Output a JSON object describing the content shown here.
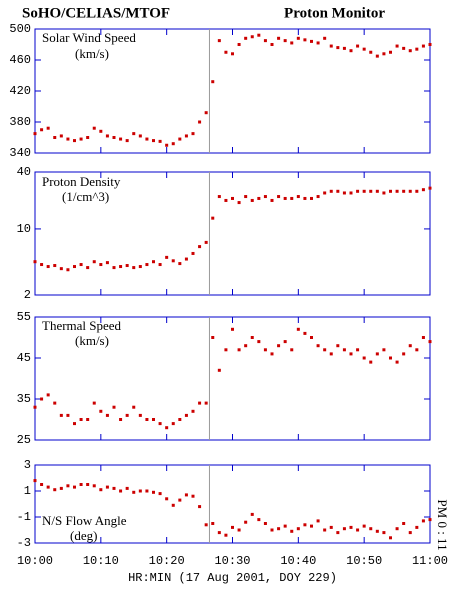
{
  "title": "SoHO/CELIAS/MTOF",
  "subtitle": "Proton Monitor",
  "side_note": "PM 0 : 11",
  "chart_data": [
    {
      "type": "scatter",
      "ylabel": "Solar Wind Speed",
      "unit": "(km/s)",
      "color": "#cc0000",
      "frame_color": "#0000cc",
      "vline_x": 626.5,
      "xlim": [
        600,
        660
      ],
      "xticks": [
        600,
        610,
        620,
        630,
        640,
        650,
        660
      ],
      "ylim": [
        340,
        500
      ],
      "yticks": [
        340,
        380,
        420,
        460,
        500
      ],
      "x": [
        600,
        601,
        602,
        603,
        604,
        605,
        606,
        607,
        608,
        609,
        610,
        611,
        612,
        613,
        614,
        615,
        616,
        617,
        618,
        619,
        620,
        621,
        622,
        623,
        624,
        625,
        626,
        627,
        628,
        629,
        630,
        631,
        632,
        633,
        634,
        635,
        636,
        637,
        638,
        639,
        640,
        641,
        642,
        643,
        644,
        645,
        646,
        647,
        648,
        649,
        650,
        651,
        652,
        653,
        654,
        655,
        656,
        657,
        658,
        659,
        660
      ],
      "values": [
        365,
        370,
        372,
        360,
        362,
        358,
        356,
        358,
        360,
        372,
        368,
        362,
        360,
        358,
        356,
        365,
        362,
        358,
        356,
        355,
        350,
        352,
        358,
        362,
        365,
        380,
        392,
        432,
        485,
        470,
        468,
        480,
        488,
        490,
        492,
        485,
        480,
        488,
        485,
        482,
        488,
        486,
        484,
        482,
        488,
        478,
        476,
        475,
        472,
        478,
        474,
        470,
        465,
        468,
        470,
        478,
        475,
        472,
        474,
        478,
        480
      ]
    },
    {
      "type": "scatter",
      "ylabel": "Proton Density",
      "unit": "(1/cm^3)",
      "color": "#cc0000",
      "frame_color": "#0000cc",
      "vline_x": 626.5,
      "log": true,
      "xlim": [
        600,
        660
      ],
      "xticks": [
        600,
        610,
        620,
        630,
        640,
        650,
        660
      ],
      "ylim": [
        2,
        40
      ],
      "yticks": [
        2,
        10,
        40
      ],
      "x": [
        600,
        601,
        602,
        603,
        604,
        605,
        606,
        607,
        608,
        609,
        610,
        611,
        612,
        613,
        614,
        615,
        616,
        617,
        618,
        619,
        620,
        621,
        622,
        623,
        624,
        625,
        626,
        627,
        628,
        629,
        630,
        631,
        632,
        633,
        634,
        635,
        636,
        637,
        638,
        639,
        640,
        641,
        642,
        643,
        644,
        645,
        646,
        647,
        648,
        649,
        650,
        651,
        652,
        653,
        654,
        655,
        656,
        657,
        658,
        659,
        660
      ],
      "values": [
        4.5,
        4.2,
        4.0,
        4.1,
        3.8,
        3.7,
        4.0,
        4.2,
        3.9,
        4.5,
        4.2,
        4.4,
        3.9,
        4.0,
        4.1,
        3.9,
        4.0,
        4.2,
        4.5,
        4.2,
        5.0,
        4.6,
        4.3,
        4.8,
        5.5,
        6.5,
        7.2,
        13,
        22,
        20,
        21,
        19,
        22,
        20,
        21,
        22,
        20,
        22,
        21,
        21,
        22,
        21,
        21,
        22,
        24,
        25,
        25,
        24,
        24,
        25,
        25,
        25,
        25,
        24,
        25,
        25,
        25,
        25,
        25,
        26,
        27
      ]
    },
    {
      "type": "scatter",
      "ylabel": "Thermal Speed",
      "unit": "(km/s)",
      "color": "#cc0000",
      "frame_color": "#0000cc",
      "vline_x": 626.5,
      "xlim": [
        600,
        660
      ],
      "xticks": [
        600,
        610,
        620,
        630,
        640,
        650,
        660
      ],
      "ylim": [
        25,
        55
      ],
      "yticks": [
        25,
        35,
        45,
        55
      ],
      "x": [
        600,
        601,
        602,
        603,
        604,
        605,
        606,
        607,
        608,
        609,
        610,
        611,
        612,
        613,
        614,
        615,
        616,
        617,
        618,
        619,
        620,
        621,
        622,
        623,
        624,
        625,
        626,
        627,
        628,
        629,
        630,
        631,
        632,
        633,
        634,
        635,
        636,
        637,
        638,
        639,
        640,
        641,
        642,
        643,
        644,
        645,
        646,
        647,
        648,
        649,
        650,
        651,
        652,
        653,
        654,
        655,
        656,
        657,
        658,
        659,
        660
      ],
      "values": [
        33,
        35,
        36,
        34,
        31,
        31,
        29,
        30,
        30,
        34,
        32,
        31,
        33,
        30,
        31,
        33,
        31,
        30,
        30,
        29,
        28,
        29,
        30,
        31,
        32,
        34,
        34,
        50,
        42,
        47,
        52,
        47,
        48,
        50,
        49,
        47,
        46,
        48,
        49,
        47,
        52,
        51,
        50,
        48,
        47,
        46,
        48,
        47,
        46,
        47,
        45,
        44,
        46,
        47,
        45,
        44,
        46,
        48,
        47,
        50,
        49
      ]
    },
    {
      "type": "scatter",
      "ylabel": "N/S Flow Angle",
      "unit": "(deg)",
      "color": "#cc0000",
      "frame_color": "#0000cc",
      "vline_x": 626.5,
      "xlabel": "HR:MIN (17 Aug 2001, DOY 229)",
      "xlim": [
        600,
        660
      ],
      "xticks": [
        {
          "value": 600,
          "label": "10:00"
        },
        {
          "value": 610,
          "label": "10:10"
        },
        {
          "value": 620,
          "label": "10:20"
        },
        {
          "value": 630,
          "label": "10:30"
        },
        {
          "value": 640,
          "label": "10:40"
        },
        {
          "value": 650,
          "label": "10:50"
        },
        {
          "value": 660,
          "label": "11:00"
        }
      ],
      "ylim": [
        -3,
        3
      ],
      "yticks": [
        -3,
        -1,
        1,
        3
      ],
      "x": [
        600,
        601,
        602,
        603,
        604,
        605,
        606,
        607,
        608,
        609,
        610,
        611,
        612,
        613,
        614,
        615,
        616,
        617,
        618,
        619,
        620,
        621,
        622,
        623,
        624,
        625,
        626,
        627,
        628,
        629,
        630,
        631,
        632,
        633,
        634,
        635,
        636,
        637,
        638,
        639,
        640,
        641,
        642,
        643,
        644,
        645,
        646,
        647,
        648,
        649,
        650,
        651,
        652,
        653,
        654,
        655,
        656,
        657,
        658,
        659,
        660
      ],
      "values": [
        1.8,
        1.5,
        1.3,
        1.1,
        1.2,
        1.4,
        1.3,
        1.5,
        1.5,
        1.4,
        1.1,
        1.3,
        1.2,
        1.0,
        1.2,
        0.9,
        1.0,
        1.0,
        0.9,
        0.8,
        0.4,
        -0.1,
        0.3,
        0.7,
        0.6,
        -0.2,
        -1.6,
        -1.5,
        -2.2,
        -2.4,
        -1.8,
        -2.0,
        -1.4,
        -0.8,
        -1.2,
        -1.5,
        -2.0,
        -1.9,
        -1.7,
        -2.1,
        -1.9,
        -1.6,
        -1.7,
        -1.3,
        -2.0,
        -1.8,
        -2.2,
        -1.9,
        -1.8,
        -2.0,
        -1.7,
        -1.9,
        -2.1,
        -2.2,
        -2.6,
        -1.9,
        -1.5,
        -2.2,
        -1.8,
        -1.3,
        -1.2
      ]
    }
  ]
}
